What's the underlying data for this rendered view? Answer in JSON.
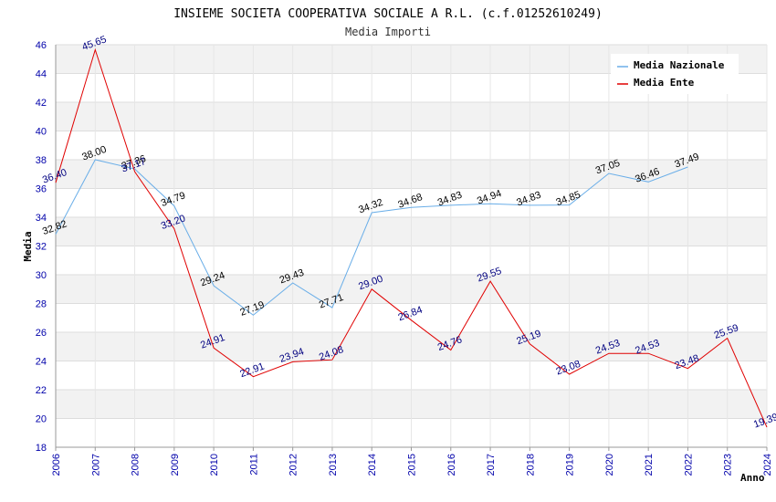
{
  "chart_data": {
    "type": "line",
    "title": "INSIEME SOCIETA COOPERATIVA SOCIALE A R.L. (c.f.01252610249)",
    "subtitle": "Media Importi",
    "xlabel": "Anno",
    "ylabel": "Media",
    "ylim": [
      18,
      46
    ],
    "yticks": [
      18,
      20,
      22,
      24,
      26,
      28,
      30,
      32,
      34,
      36,
      38,
      40,
      42,
      44,
      46
    ],
    "x": [
      2006,
      2007,
      2008,
      2009,
      2010,
      2011,
      2012,
      2013,
      2014,
      2015,
      2016,
      2017,
      2018,
      2019,
      2020,
      2021,
      2022,
      2023,
      2024
    ],
    "series": [
      {
        "name": "Media Nazionale",
        "color": "#6aaee8",
        "values": [
          32.82,
          38.0,
          37.36,
          34.79,
          29.24,
          27.19,
          29.43,
          27.71,
          34.32,
          34.68,
          34.83,
          34.94,
          34.83,
          34.85,
          37.05,
          36.46,
          37.49,
          null,
          null
        ],
        "labels": [
          "32.82",
          "38.00",
          "37.36",
          "34.79",
          "29.24",
          "27.19",
          "29.43",
          "27.71",
          "34.32",
          "34.68",
          "34.83",
          "34.94",
          "34.83",
          "34.85",
          "37.05",
          "36.46",
          "37.49",
          null,
          null
        ]
      },
      {
        "name": "Media Ente",
        "color": "#e00000",
        "values": [
          36.4,
          45.65,
          37.17,
          33.2,
          24.91,
          22.91,
          23.94,
          24.08,
          29.0,
          26.84,
          24.76,
          29.55,
          25.19,
          23.08,
          24.53,
          24.53,
          23.48,
          25.59,
          19.39
        ],
        "labels": [
          "36.40",
          "45.65",
          "37.17",
          "33.20",
          "24.91",
          "22.91",
          "23.94",
          "24.08",
          "29.00",
          "26.84",
          "24.76",
          "29.55",
          "25.19",
          "23.08",
          "24.53",
          "24.53",
          "23.48",
          "25.59",
          "19.39"
        ]
      }
    ],
    "legend": "top-right",
    "grid": true
  }
}
